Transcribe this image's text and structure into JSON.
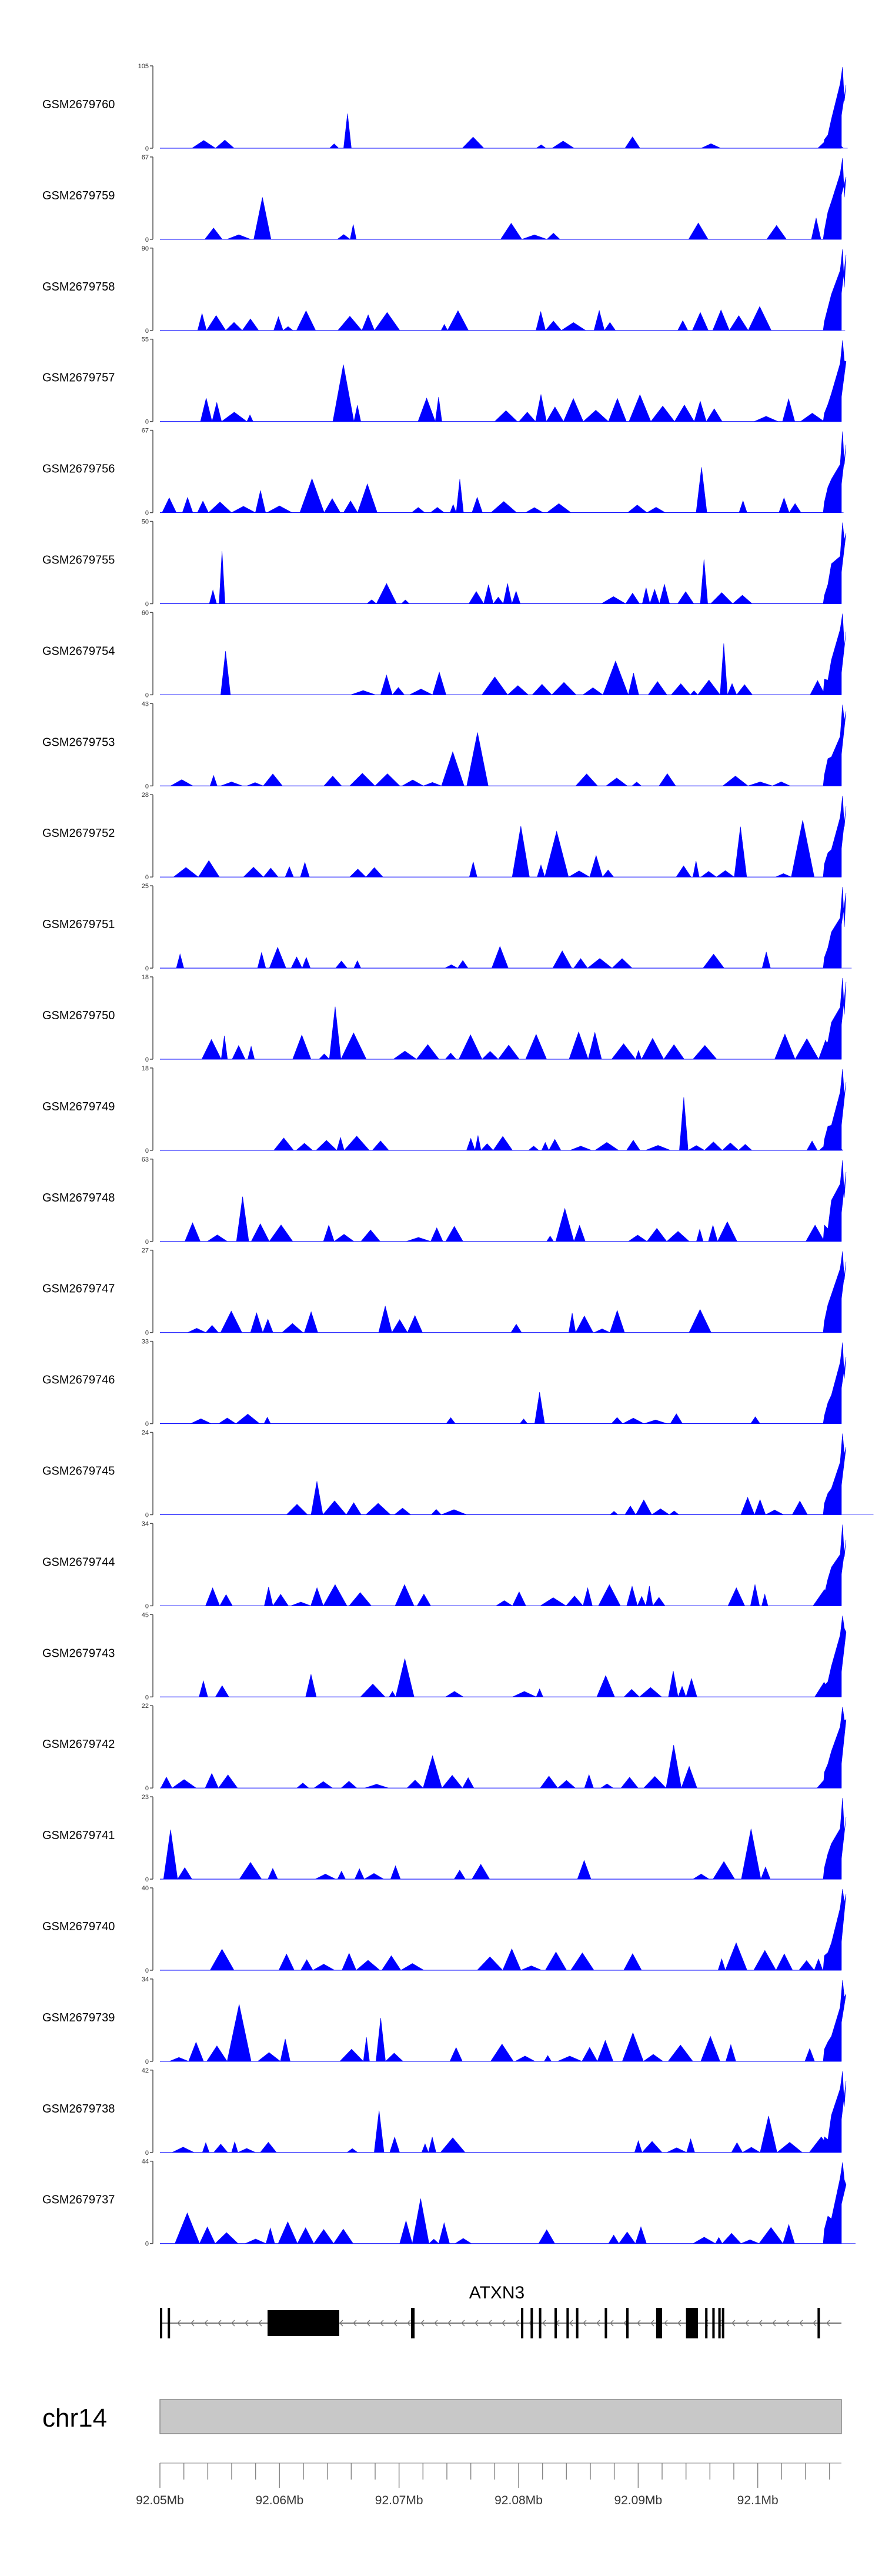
{
  "chart_data": {
    "type": "area",
    "title": "",
    "color": "#0000ff",
    "x_range_bp": [
      92050000,
      92107000
    ],
    "series": [
      {
        "name": "GSM2679760",
        "ymax": 105,
        "ymin": 0,
        "peak": [
          92106800,
          92107000
        ]
      },
      {
        "name": "GSM2679759",
        "ymax": 67,
        "ymin": 0,
        "peak": [
          92106800,
          92107000
        ]
      },
      {
        "name": "GSM2679758",
        "ymax": 90,
        "ymin": 0,
        "peak": [
          92106800,
          92107000
        ]
      },
      {
        "name": "GSM2679757",
        "ymax": 55,
        "ymin": 0,
        "peak": [
          92106800,
          92107000
        ]
      },
      {
        "name": "GSM2679756",
        "ymax": 67,
        "ymin": 0,
        "peak": [
          92106800,
          92107000
        ]
      },
      {
        "name": "GSM2679755",
        "ymax": 50,
        "ymin": 0,
        "peak": [
          92106800,
          92107000
        ]
      },
      {
        "name": "GSM2679754",
        "ymax": 60,
        "ymin": 0,
        "peak": [
          92106800,
          92107000
        ]
      },
      {
        "name": "GSM2679753",
        "ymax": 43,
        "ymin": 0,
        "peak": [
          92106800,
          92107000
        ]
      },
      {
        "name": "GSM2679752",
        "ymax": 28,
        "ymin": 0,
        "peak": [
          92106800,
          92107000
        ]
      },
      {
        "name": "GSM2679751",
        "ymax": 25,
        "ymin": 0,
        "peak": [
          92106800,
          92107000
        ]
      },
      {
        "name": "GSM2679750",
        "ymax": 18,
        "ymin": 0,
        "peak": [
          92106800,
          92107000
        ]
      },
      {
        "name": "GSM2679749",
        "ymax": 18,
        "ymin": 0,
        "peak": [
          92106800,
          92107000
        ]
      },
      {
        "name": "GSM2679748",
        "ymax": 63,
        "ymin": 0,
        "peak": [
          92106800,
          92107000
        ]
      },
      {
        "name": "GSM2679747",
        "ymax": 27,
        "ymin": 0,
        "peak": [
          92106800,
          92107000
        ]
      },
      {
        "name": "GSM2679746",
        "ymax": 33,
        "ymin": 0,
        "peak": [
          92106800,
          92107000
        ]
      },
      {
        "name": "GSM2679745",
        "ymax": 24,
        "ymin": 0,
        "peak": [
          92106800,
          92107000
        ]
      },
      {
        "name": "GSM2679744",
        "ymax": 34,
        "ymin": 0,
        "peak": [
          92106800,
          92107000
        ]
      },
      {
        "name": "GSM2679743",
        "ymax": 45,
        "ymin": 0,
        "peak": [
          92106800,
          92107000
        ]
      },
      {
        "name": "GSM2679742",
        "ymax": 22,
        "ymin": 0,
        "peak": [
          92106800,
          92107000
        ]
      },
      {
        "name": "GSM2679741",
        "ymax": 23,
        "ymin": 0,
        "peak": [
          92106800,
          92107000
        ]
      },
      {
        "name": "GSM2679740",
        "ymax": 40,
        "ymin": 0,
        "peak": [
          92106800,
          92107000
        ]
      },
      {
        "name": "GSM2679739",
        "ymax": 34,
        "ymin": 0,
        "peak": [
          92106800,
          92107000
        ]
      },
      {
        "name": "GSM2679738",
        "ymax": 42,
        "ymin": 0,
        "peak": [
          92106800,
          92107000
        ]
      },
      {
        "name": "GSM2679737",
        "ymax": 44,
        "ymin": 0,
        "peak": [
          92106800,
          92107000
        ]
      }
    ],
    "gene": {
      "name": "ATXN3",
      "strand": "-",
      "start": 92050000,
      "end": 92107000,
      "exons": [
        [
          92050000,
          92050150
        ],
        [
          92050650,
          92050800
        ],
        [
          92059000,
          92065000
        ],
        [
          92071000,
          92071300
        ],
        [
          92080200,
          92080350
        ],
        [
          92081000,
          92081200
        ],
        [
          92081700,
          92081900
        ],
        [
          92083000,
          92083200
        ],
        [
          92084000,
          92084200
        ],
        [
          92084800,
          92085000
        ],
        [
          92087200,
          92087400
        ],
        [
          92089000,
          92089200
        ],
        [
          92091500,
          92092000
        ],
        [
          92094000,
          92095000
        ],
        [
          92095600,
          92095800
        ],
        [
          92096200,
          92096400
        ],
        [
          92096700,
          92096900
        ],
        [
          92097000,
          92097200
        ],
        [
          92105000,
          92105200
        ]
      ]
    },
    "chromosome": "chr14",
    "axis": {
      "ticks": [
        92050000,
        92060000,
        92070000,
        92080000,
        92090000,
        92100000
      ],
      "tick_labels": [
        "92.05Mb",
        "92.06Mb",
        "92.07Mb",
        "92.08Mb",
        "92.09Mb",
        "92.1Mb"
      ]
    }
  }
}
